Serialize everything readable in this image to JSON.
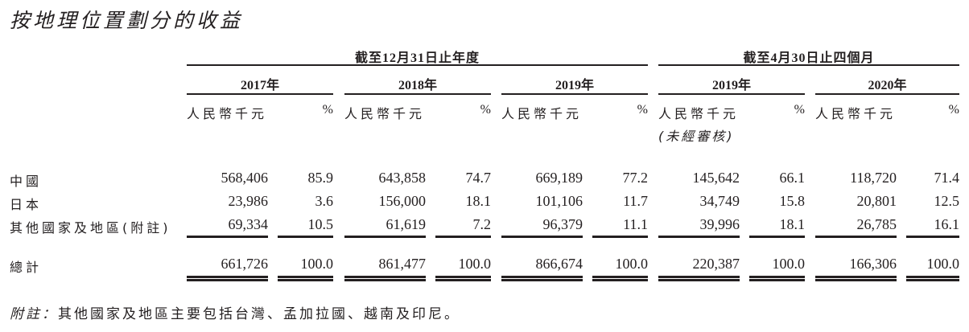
{
  "title": "按地理位置劃分的收益",
  "periods": [
    {
      "label": "截至12月31日止年度"
    },
    {
      "label": "截至4月30日止四個月"
    }
  ],
  "columns": [
    {
      "year": "2017年",
      "currency": "人民幣千元",
      "pct": "%"
    },
    {
      "year": "2018年",
      "currency": "人民幣千元",
      "pct": "%"
    },
    {
      "year": "2019年",
      "currency": "人民幣千元",
      "pct": "%"
    },
    {
      "year": "2019年",
      "currency": "人民幣千元",
      "pct": "%",
      "note": "(未經審核)"
    },
    {
      "year": "2020年",
      "currency": "人民幣千元",
      "pct": "%"
    }
  ],
  "rows": [
    {
      "label": "中國",
      "values": [
        "568,406",
        "85.9",
        "643,858",
        "74.7",
        "669,189",
        "77.2",
        "145,642",
        "66.1",
        "118,720",
        "71.4"
      ]
    },
    {
      "label": "日本",
      "values": [
        "23,986",
        "3.6",
        "156,000",
        "18.1",
        "101,106",
        "11.7",
        "34,749",
        "15.8",
        "20,801",
        "12.5"
      ]
    },
    {
      "label": "其他國家及地區(附註)",
      "values": [
        "69,334",
        "10.5",
        "61,619",
        "7.2",
        "96,379",
        "11.1",
        "39,996",
        "18.1",
        "26,785",
        "16.1"
      ]
    }
  ],
  "total": {
    "label": "總計",
    "values": [
      "661,726",
      "100.0",
      "861,477",
      "100.0",
      "866,674",
      "100.0",
      "220,387",
      "100.0",
      "166,306",
      "100.0"
    ]
  },
  "footnote": {
    "prefix": "附註：",
    "text": "其他國家及地區主要包括台灣、孟加拉國、越南及印尼。"
  }
}
